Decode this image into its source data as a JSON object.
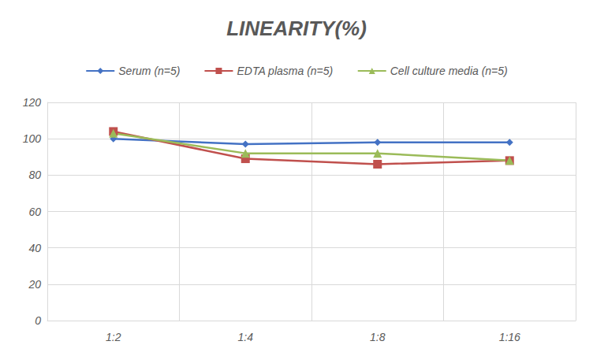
{
  "chart_data": {
    "type": "line",
    "title": "LINEARITY(%)",
    "categories": [
      "1:2",
      "1:4",
      "1:8",
      "1:16"
    ],
    "series": [
      {
        "name": "Serum (n=5)",
        "color": "#4472c4",
        "marker": "diamond",
        "values": [
          100,
          97,
          98,
          98
        ]
      },
      {
        "name": "EDTA plasma (n=5)",
        "color": "#c0504d",
        "marker": "square",
        "values": [
          104,
          89,
          86,
          88
        ]
      },
      {
        "name": "Cell culture media (n=5)",
        "color": "#9bbb59",
        "marker": "triangle",
        "values": [
          103,
          92,
          92,
          88
        ]
      }
    ],
    "ylim": [
      0,
      120
    ],
    "yticks": [
      0,
      20,
      40,
      60,
      80,
      100,
      120
    ],
    "grid": true,
    "legend": "top"
  }
}
